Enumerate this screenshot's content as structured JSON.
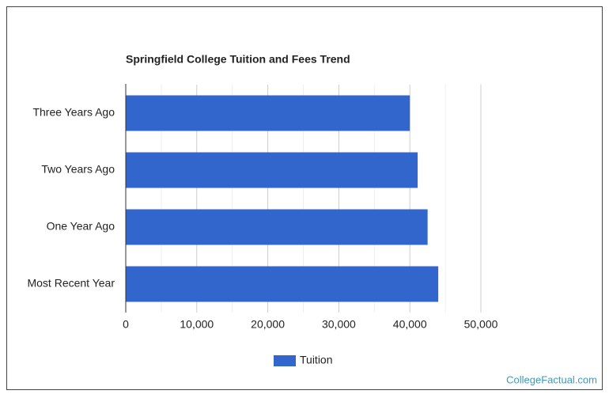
{
  "chart_data": {
    "type": "hbar",
    "title": "Springfield College Tuition and Fees Trend",
    "categories": [
      "Three Years Ago",
      "Two Years Ago",
      "One Year Ago",
      "Most Recent Year"
    ],
    "series": [
      {
        "name": "Tuition",
        "color": "#3366cc",
        "values": [
          40000,
          41100,
          42500,
          44000
        ]
      }
    ],
    "xlim": [
      0,
      50000
    ],
    "xticks": [
      0,
      {
        "value": 10000,
        "label": "10,000"
      },
      {
        "value": 20000,
        "label": "20,000"
      },
      {
        "value": 30000,
        "label": "30,000"
      },
      {
        "value": 40000,
        "label": "40,000"
      },
      {
        "value": 50000,
        "label": "50,000"
      }
    ],
    "grid": true,
    "legend": "bottom"
  },
  "watermark": "CollegeFactual.com"
}
